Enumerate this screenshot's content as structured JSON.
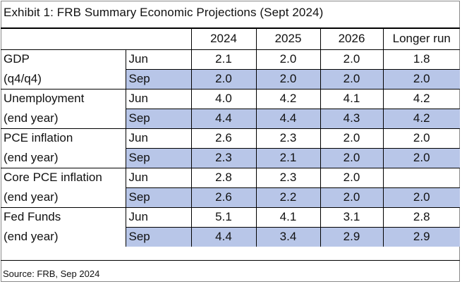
{
  "title": "Exhibit 1: FRB Summary Economic Projections (Sept 2024)",
  "columns": [
    "2024",
    "2025",
    "2026",
    "Longer run"
  ],
  "rows": [
    {
      "label": "GDP",
      "period": "Jun",
      "values": [
        "2.1",
        "2.0",
        "2.0",
        "1.8"
      ]
    },
    {
      "label": "(q4/q4)",
      "period": "Sep",
      "values": [
        "2.0",
        "2.0",
        "2.0",
        "2.0"
      ]
    },
    {
      "label": "Unemployment",
      "period": "Jun",
      "values": [
        "4.0",
        "4.2",
        "4.1",
        "4.2"
      ]
    },
    {
      "label": "(end year)",
      "period": "Sep",
      "values": [
        "4.4",
        "4.4",
        "4.3",
        "4.2"
      ]
    },
    {
      "label": "PCE inflation",
      "period": "Jun",
      "values": [
        "2.6",
        "2.3",
        "2.0",
        "2.0"
      ]
    },
    {
      "label": "(end year)",
      "period": "Sep",
      "values": [
        "2.3",
        "2.1",
        "2.0",
        "2.0"
      ]
    },
    {
      "label": "Core PCE inflation",
      "period": "Jun",
      "values": [
        "2.8",
        "2.3",
        "2.0",
        ""
      ]
    },
    {
      "label": "(end year)",
      "period": "Sep",
      "values": [
        "2.6",
        "2.2",
        "2.0",
        "2.0"
      ]
    },
    {
      "label": "Fed Funds",
      "period": "Jun",
      "values": [
        "5.1",
        "4.1",
        "3.1",
        "2.8"
      ]
    },
    {
      "label": "(end year)",
      "period": "Sep",
      "values": [
        "4.4",
        "3.4",
        "2.9",
        "2.9"
      ]
    }
  ],
  "source": "Source: FRB, Sep 2024",
  "colors": {
    "sep_highlight": "#b8c6e8",
    "rule": "#000000"
  }
}
